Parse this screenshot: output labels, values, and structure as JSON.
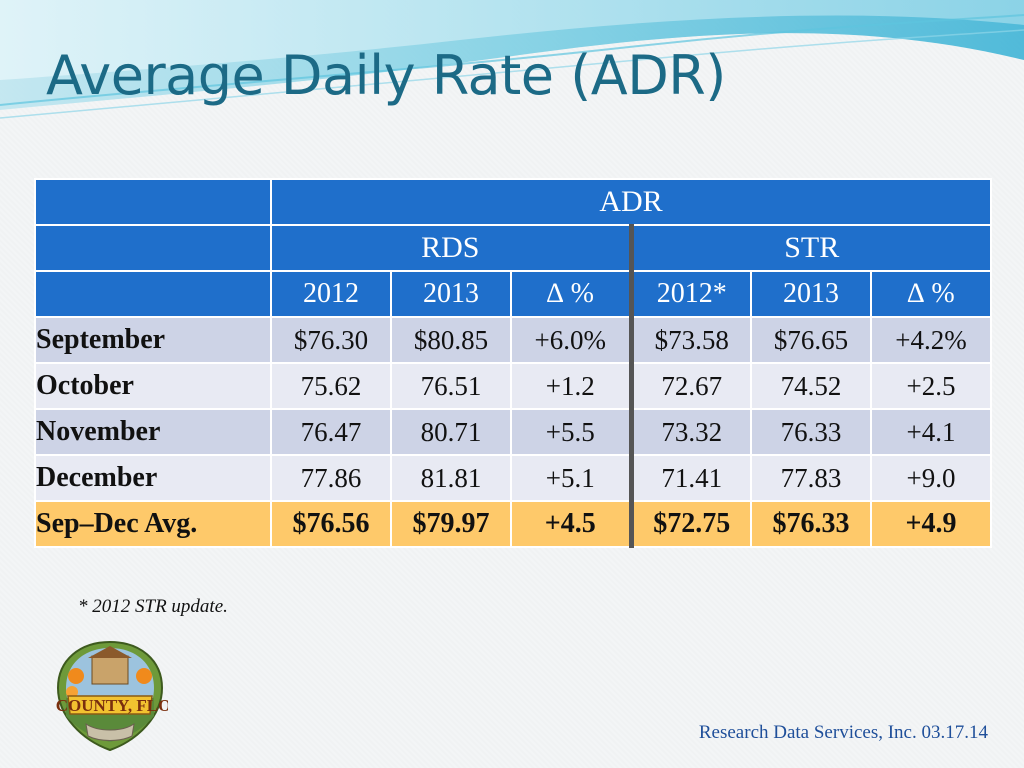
{
  "slide": {
    "title": "Average Daily Rate (ADR)",
    "footnote": "* 2012 STR update.",
    "credit": "Research Data Services, Inc.  03.17.14"
  },
  "table": {
    "group_header": "ADR",
    "subgroups": [
      "RDS",
      "STR"
    ],
    "columns": [
      "2012",
      "2013",
      "∆ %",
      "2012*",
      "2013",
      "∆ %"
    ],
    "rows": [
      {
        "label": "September",
        "values": [
          "$76.30",
          "$80.85",
          "+6.0%",
          "$73.58",
          "$76.65",
          "+4.2%"
        ]
      },
      {
        "label": "October",
        "values": [
          "75.62",
          "76.51",
          "+1.2",
          "72.67",
          "74.52",
          "+2.5"
        ]
      },
      {
        "label": "November",
        "values": [
          "76.47",
          "80.71",
          "+5.5",
          "73.32",
          "76.33",
          "+4.1"
        ]
      },
      {
        "label": "December",
        "values": [
          "77.86",
          "81.81",
          "+5.1",
          "71.41",
          "77.83",
          "+9.0"
        ]
      },
      {
        "label": "Sep–Dec Avg.",
        "values": [
          "$76.56",
          "$79.97",
          "+4.5",
          "$72.75",
          "$76.33",
          "+4.9"
        ]
      }
    ]
  },
  "colors": {
    "title": "#1c6a86",
    "header": "#1f6fcb",
    "row_band_1": "#cdd3e6",
    "row_band_2": "#e8eaf3",
    "avg_row": "#fec96a"
  },
  "logo": {
    "icon": "citrus-county-florida-logo",
    "text": "Citrus COUNTY, FLORIDA"
  }
}
